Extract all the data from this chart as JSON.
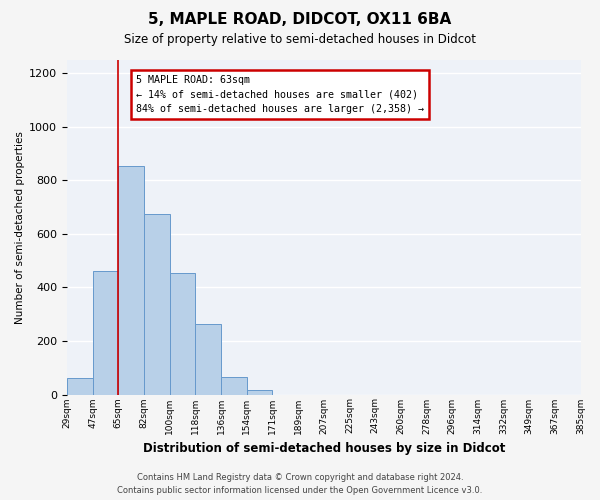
{
  "title": "5, MAPLE ROAD, DIDCOT, OX11 6BA",
  "subtitle": "Size of property relative to semi-detached houses in Didcot",
  "xlabel": "Distribution of semi-detached houses by size in Didcot",
  "ylabel": "Number of semi-detached properties",
  "bin_labels": [
    "29sqm",
    "47sqm",
    "65sqm",
    "82sqm",
    "100sqm",
    "118sqm",
    "136sqm",
    "154sqm",
    "171sqm",
    "189sqm",
    "207sqm",
    "225sqm",
    "243sqm",
    "260sqm",
    "278sqm",
    "296sqm",
    "314sqm",
    "332sqm",
    "349sqm",
    "367sqm",
    "385sqm"
  ],
  "bar_values": [
    60,
    460,
    855,
    675,
    455,
    265,
    65,
    15,
    0,
    0,
    0,
    0,
    0,
    0,
    0,
    0,
    0,
    0,
    0,
    0
  ],
  "bar_color": "#b8d0e8",
  "bar_edge_color": "#6699cc",
  "annotation_title": "5 MAPLE ROAD: 63sqm",
  "annotation_line1": "← 14% of semi-detached houses are smaller (402)",
  "annotation_line2": "84% of semi-detached houses are larger (2,358) →",
  "annotation_box_color": "#ffffff",
  "annotation_box_edge": "#cc0000",
  "vline_color": "#cc0000",
  "ylim": [
    0,
    1250
  ],
  "yticks": [
    0,
    200,
    400,
    600,
    800,
    1000,
    1200
  ],
  "bg_color": "#eef2f8",
  "grid_color": "#ffffff",
  "footer_line1": "Contains HM Land Registry data © Crown copyright and database right 2024.",
  "footer_line2": "Contains public sector information licensed under the Open Government Licence v3.0."
}
